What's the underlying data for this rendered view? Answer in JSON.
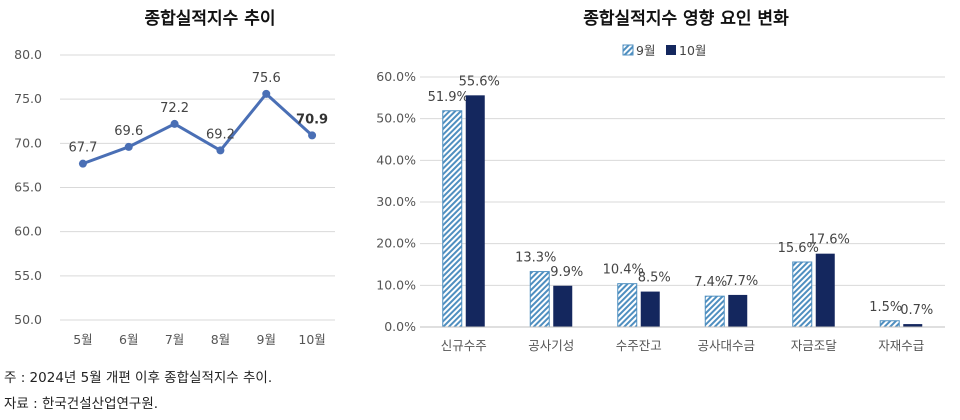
{
  "chart_data": [
    {
      "type": "line",
      "title": "종합실적지수 추이",
      "categories": [
        "5월",
        "6월",
        "7월",
        "8월",
        "9월",
        "10월"
      ],
      "values": [
        67.7,
        69.6,
        72.2,
        69.2,
        75.6,
        70.9
      ],
      "value_labels": [
        "67.7",
        "69.6",
        "72.2",
        "69.2",
        "75.6",
        "70.9"
      ],
      "y_ticks": [
        "80.0",
        "75.0",
        "70.0",
        "65.0",
        "60.0",
        "55.0",
        "50.0"
      ],
      "ylim": [
        50,
        80
      ],
      "grid": true,
      "line_color": "#4a6fb5"
    },
    {
      "type": "bar",
      "title": "종합실적지수 영향 요인 변화",
      "categories": [
        "신규수주",
        "공사기성",
        "수주잔고",
        "공사대수금",
        "자금조달",
        "자재수급"
      ],
      "series": [
        {
          "name": "9월",
          "values": [
            51.9,
            13.3,
            10.4,
            7.4,
            15.6,
            1.5
          ],
          "labels": [
            "51.9%",
            "13.3%",
            "10.4%",
            "7.4%",
            "15.6%",
            "1.5%"
          ],
          "color": "#4f8fc0"
        },
        {
          "name": "10월",
          "values": [
            55.6,
            9.9,
            8.5,
            7.7,
            17.6,
            0.7
          ],
          "labels": [
            "55.6%",
            "9.9%",
            "8.5%",
            "7.7%",
            "17.6%",
            "0.7%"
          ],
          "color": "#14275e"
        }
      ],
      "y_ticks": [
        "60.0%",
        "50.0%",
        "40.0%",
        "30.0%",
        "20.0%",
        "10.0%",
        "0.0%"
      ],
      "ylim": [
        0,
        60
      ],
      "grid": true,
      "legend": "top"
    }
  ],
  "footnotes": {
    "note": "주 : 2024년 5월 개편 이후 종합실적지수 추이.",
    "source": "자료 : 한국건설산업연구원."
  }
}
